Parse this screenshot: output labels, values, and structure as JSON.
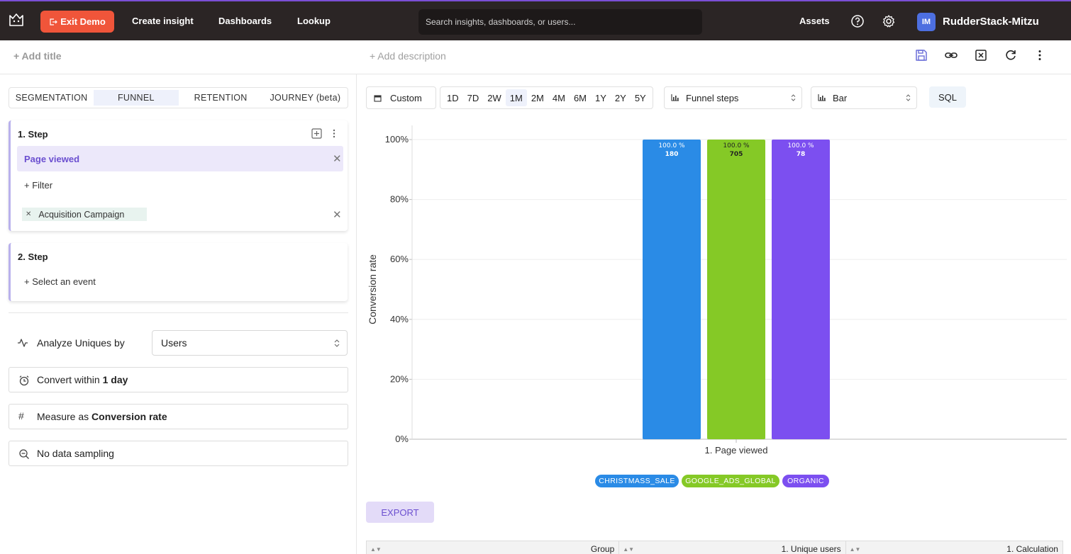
{
  "topbar": {
    "exit_demo": "Exit Demo",
    "nav": [
      "Create insight",
      "Dashboards",
      "Lookup"
    ],
    "search_placeholder": "Search insights, dashboards, or users...",
    "assets": "Assets",
    "avatar_initials": "IM",
    "org_name": "RudderStack-Mitzu"
  },
  "titlebar": {
    "add_title": "+ Add title",
    "add_description": "+ Add description"
  },
  "left": {
    "tabs": [
      {
        "label": "SEGMENTATION",
        "active": false
      },
      {
        "label": "FUNNEL",
        "active": true
      },
      {
        "label": "RETENTION",
        "active": false
      },
      {
        "label": "JOURNEY (beta)",
        "active": false
      }
    ],
    "step1": {
      "title": "1.  Step",
      "event": "Page viewed",
      "filter": "+ Filter",
      "chip": "Acquisition Campaign"
    },
    "step2": {
      "title": "2.  Step",
      "select_event": "+ Select an event"
    },
    "analyze_label": "Analyze Uniques by",
    "analyze_value": "Users",
    "convert_prefix": "Convert within ",
    "convert_value": "1 day",
    "measure_prefix": "Measure as ",
    "measure_value": "Conversion rate",
    "sampling": "No data sampling"
  },
  "controls": {
    "date_mode": "Custom",
    "ranges": [
      "1D",
      "7D",
      "2W",
      "1M",
      "2M",
      "4M",
      "6M",
      "1Y",
      "2Y",
      "5Y"
    ],
    "active_range": "1M",
    "view_select": "Funnel steps",
    "chart_type": "Bar",
    "sql": "SQL"
  },
  "chart_data": {
    "type": "bar",
    "categories": [
      "1. Page viewed"
    ],
    "ylabel": "Conversion rate",
    "ylim": [
      0,
      100
    ],
    "yticks": [
      "0%",
      "20%",
      "40%",
      "60%",
      "80%",
      "100%"
    ],
    "series": [
      {
        "name": "CHRISTMASS_SALE",
        "values": [
          100.0
        ],
        "count": "180",
        "label": "100.0 %",
        "color": "#2a8be6"
      },
      {
        "name": "GOOGLE_ADS_GLOBAL",
        "values": [
          100.0
        ],
        "count": "705",
        "label": "100.0 %",
        "color": "#85c926"
      },
      {
        "name": "ORGANIC",
        "values": [
          100.0
        ],
        "count": "78",
        "label": "100.0 %",
        "color": "#7c4ff0"
      }
    ]
  },
  "export": "EXPORT",
  "table": {
    "headers": [
      "Group",
      "1. Unique users",
      "1. Calculation"
    ]
  }
}
